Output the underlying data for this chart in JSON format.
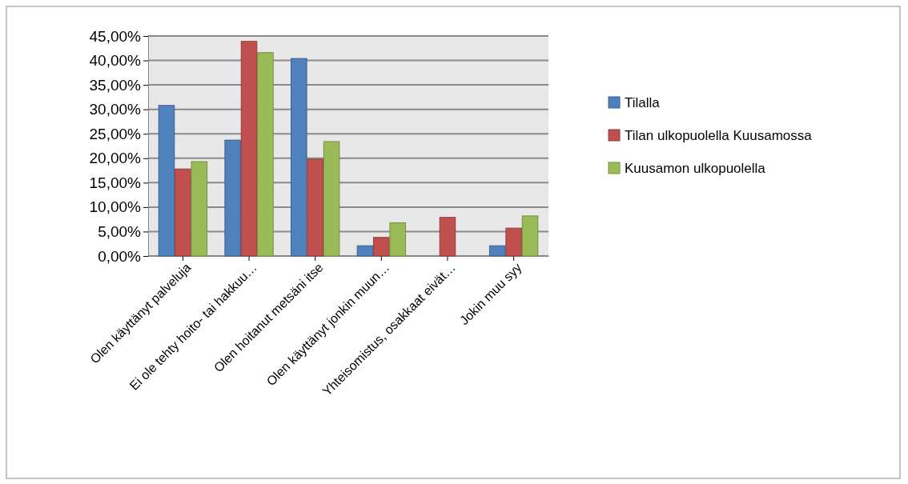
{
  "chart_data": {
    "type": "bar",
    "categories": [
      "Olen käyttänyt palveluja",
      "Ei ole tehty hoito- tai hakkuu…",
      "Olen hoitanut metsäni itse",
      "Olen käyttänyt jonkin muun…",
      "Yhteisomistus, osakkaat eivät…",
      "Jokin muu syy"
    ],
    "series": [
      {
        "name": "Tilalla",
        "color": "#4f81bd",
        "values": [
          30.8,
          23.7,
          40.4,
          2.1,
          0,
          2.1
        ]
      },
      {
        "name": "Tilan ulkopuolella Kuusamossa",
        "color": "#c0504d",
        "values": [
          17.8,
          43.9,
          19.8,
          3.8,
          7.9,
          5.7
        ]
      },
      {
        "name": "Kuusamon ulkopuolella",
        "color": "#9bbb59",
        "values": [
          19.3,
          41.6,
          23.4,
          6.8,
          0,
          8.2
        ]
      }
    ],
    "ylim": [
      0,
      45
    ],
    "yticks": [
      {
        "value": 0,
        "label": "0,00%"
      },
      {
        "value": 5,
        "label": "5,00%"
      },
      {
        "value": 10,
        "label": "10,00%"
      },
      {
        "value": 15,
        "label": "15,00%"
      },
      {
        "value": 20,
        "label": "20,00%"
      },
      {
        "value": 25,
        "label": "25,00%"
      },
      {
        "value": 30,
        "label": "30,00%"
      },
      {
        "value": 35,
        "label": "35,00%"
      },
      {
        "value": 40,
        "label": "40,00%"
      },
      {
        "value": 45,
        "label": "45,00%"
      }
    ],
    "grid": "y",
    "legend": "right"
  }
}
